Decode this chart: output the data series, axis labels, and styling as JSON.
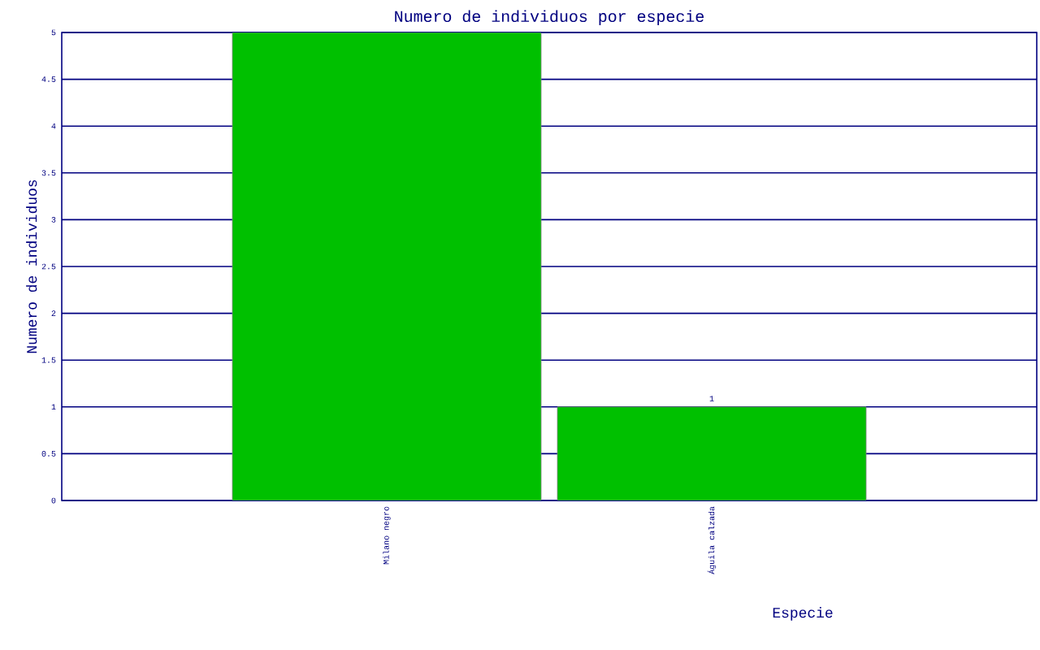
{
  "chart_data": {
    "type": "bar",
    "title": "Numero de individuos por especie",
    "xlabel": "Especie",
    "ylabel": "Numero de individuos",
    "categories": [
      "Milano negro",
      "Águila calzada"
    ],
    "values": [
      5,
      1
    ],
    "color": "#00c000",
    "value_labels": [
      null,
      "1"
    ],
    "ylim": [
      0,
      5
    ],
    "yticks": [
      0,
      0.5,
      1,
      1.5,
      2,
      2.5,
      3,
      3.5,
      4,
      4.5,
      5
    ],
    "grid": "y"
  }
}
